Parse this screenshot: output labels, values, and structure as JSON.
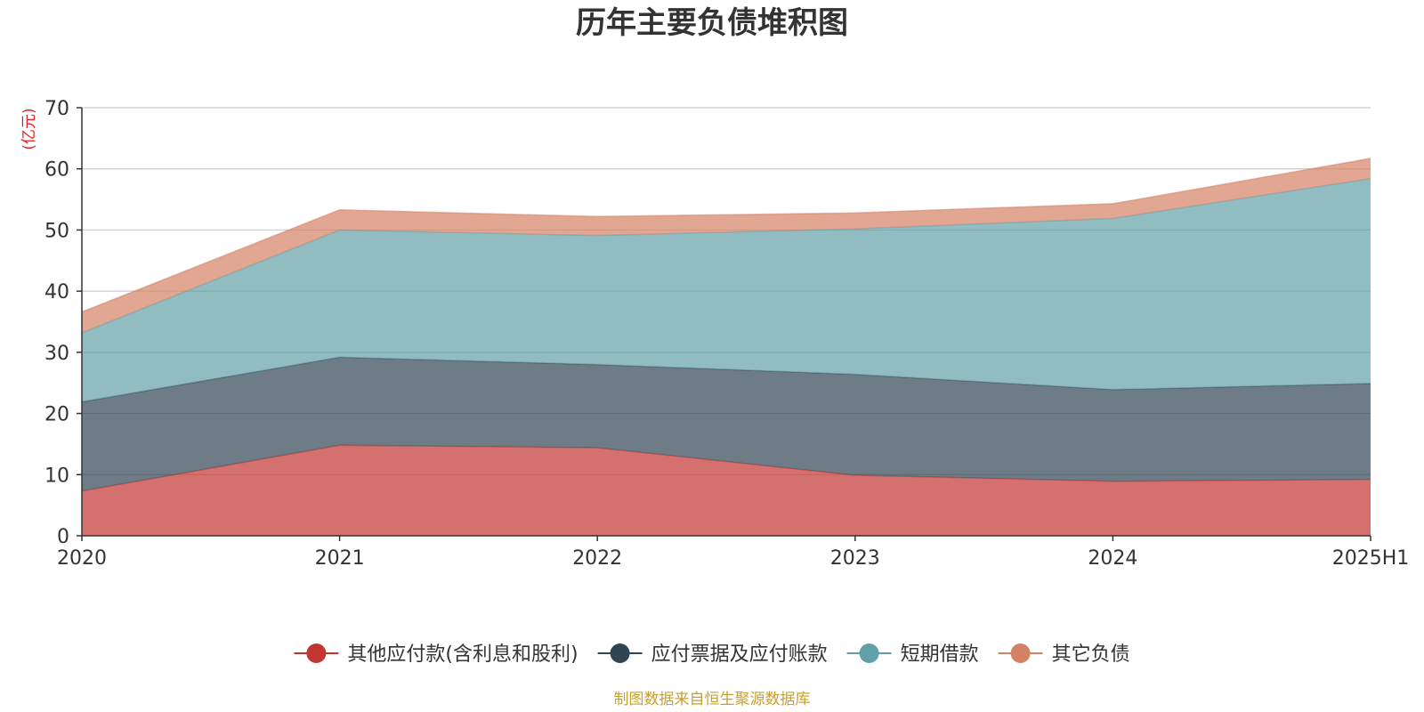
{
  "chart_data": {
    "type": "area",
    "stacked": true,
    "title": "历年主要负债堆积图",
    "unit": "(亿元)",
    "categories": [
      "2020",
      "2021",
      "2022",
      "2023",
      "2024",
      "2025H1"
    ],
    "ylim": [
      0,
      70
    ],
    "yticks": [
      0,
      10,
      20,
      30,
      40,
      50,
      60,
      70
    ],
    "grid": true,
    "legend_position": "bottom",
    "series": [
      {
        "name": "其他应付款(含利息和股利)",
        "color": "#c23531",
        "values": [
          7.3,
          14.8,
          14.4,
          9.9,
          8.9,
          9.2
        ]
      },
      {
        "name": "应付票据及应付账款",
        "color": "#2f4554",
        "values": [
          14.6,
          14.4,
          13.6,
          16.5,
          15.0,
          15.7
        ]
      },
      {
        "name": "短期借款",
        "color": "#61a0a8",
        "values": [
          11.3,
          20.8,
          21.1,
          23.8,
          28.0,
          33.5
        ]
      },
      {
        "name": "其它负债",
        "color": "#d48265",
        "values": [
          3.4,
          3.3,
          3.1,
          2.6,
          2.4,
          3.3
        ]
      }
    ],
    "source": "制图数据来自恒生聚源数据库"
  }
}
